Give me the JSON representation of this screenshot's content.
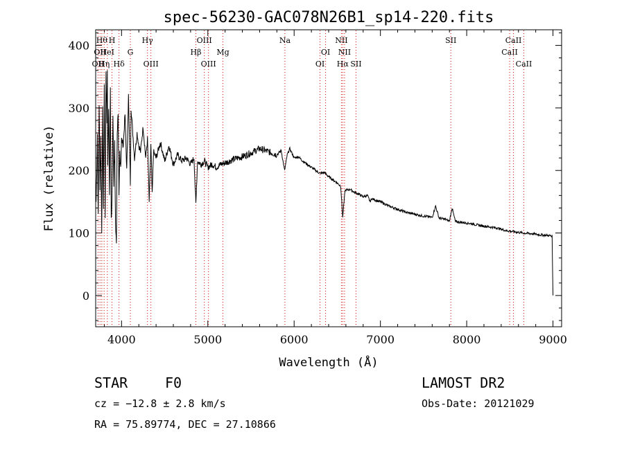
{
  "chart_data": {
    "type": "line",
    "title": "spec-56230-GAC078N26B1_sp14-220.fits",
    "xlabel": "Wavelength (Å)",
    "ylabel": "Flux (relative)",
    "xlim": [
      3700,
      9100
    ],
    "ylim": [
      -50,
      425
    ],
    "xticks": [
      4000,
      5000,
      6000,
      7000,
      8000,
      9000
    ],
    "yticks": [
      0,
      100,
      200,
      300,
      400
    ],
    "grid": false,
    "line_color": "#000000",
    "marker_color": "#cc0000",
    "series": [
      {
        "x": [
          3705,
          3720,
          3730,
          3740,
          3750,
          3760,
          3770,
          3780,
          3790,
          3800,
          3810,
          3820,
          3830,
          3835,
          3840,
          3850,
          3860,
          3870,
          3880,
          3889,
          3900,
          3910,
          3920,
          3930,
          3940,
          3950,
          3960,
          3970,
          3980,
          3990,
          4000,
          4020,
          4040,
          4060,
          4080,
          4102,
          4110,
          4130,
          4150,
          4180,
          4200,
          4220,
          4250,
          4280,
          4300,
          4320,
          4340,
          4355,
          4370,
          4400,
          4450,
          4500,
          4550,
          4600,
          4650,
          4700,
          4750,
          4800,
          4840,
          4861,
          4880,
          4920,
          4960,
          5000,
          5050,
          5100,
          5150,
          5200,
          5250,
          5300,
          5400,
          5500,
          5600,
          5700,
          5800,
          5850,
          5890,
          5920,
          5950,
          6000,
          6050,
          6100,
          6150,
          6200,
          6250,
          6300,
          6350,
          6400,
          6450,
          6500,
          6540,
          6563,
          6590,
          6650,
          6700,
          6750,
          6800,
          6850,
          6880,
          6900,
          6950,
          7000,
          7100,
          7200,
          7300,
          7400,
          7500,
          7600,
          7640,
          7680,
          7750,
          7800,
          7830,
          7870,
          7950,
          8050,
          8150,
          8250,
          8350,
          8450,
          8550,
          8650,
          8750,
          8850,
          8950,
          8990,
          9000
        ],
        "y": [
          150,
          260,
          120,
          310,
          180,
          250,
          100,
          290,
          140,
          340,
          130,
          360,
          280,
          370,
          200,
          310,
          150,
          330,
          120,
          160,
          300,
          170,
          250,
          110,
          90,
          270,
          280,
          150,
          230,
          210,
          250,
          240,
          290,
          200,
          320,
          180,
          300,
          260,
          220,
          260,
          240,
          230,
          270,
          220,
          250,
          150,
          240,
          160,
          230,
          220,
          245,
          215,
          240,
          210,
          225,
          215,
          220,
          210,
          220,
          145,
          215,
          210,
          215,
          205,
          210,
          205,
          210,
          212,
          215,
          218,
          222,
          228,
          235,
          230,
          225,
          232,
          200,
          225,
          235,
          220,
          222,
          215,
          210,
          205,
          200,
          195,
          197,
          190,
          185,
          180,
          175,
          125,
          168,
          170,
          165,
          162,
          158,
          160,
          150,
          155,
          152,
          150,
          143,
          138,
          133,
          130,
          127,
          125,
          143,
          124,
          122,
          119,
          140,
          118,
          117,
          115,
          112,
          110,
          108,
          104,
          102,
          100,
          99,
          97,
          96,
          95,
          0
        ]
      }
    ],
    "line_markers": [
      {
        "x": 3727,
        "label": "OII",
        "row": 2
      },
      {
        "x": 3750,
        "label": "OII",
        "row": 1
      },
      {
        "x": 3771,
        "label": "Hθ",
        "row": 0
      },
      {
        "x": 3798,
        "label": "Hη",
        "row": 2
      },
      {
        "x": 3835,
        "label": "HeI",
        "row": 1
      },
      {
        "x": 3889,
        "label": "H",
        "row": 0
      },
      {
        "x": 3970,
        "label": "Hδ",
        "row": 2
      },
      {
        "x": 4102,
        "label": "G",
        "row": 1
      },
      {
        "x": 4300,
        "label": "Hγ",
        "row": 0
      },
      {
        "x": 4340,
        "label": "OIII",
        "row": 2
      },
      {
        "x": 4861,
        "label": "Hβ",
        "row": 1
      },
      {
        "x": 4959,
        "label": "OIII",
        "row": 0
      },
      {
        "x": 5007,
        "label": "OIII",
        "row": 2
      },
      {
        "x": 5175,
        "label": "Mg",
        "row": 1
      },
      {
        "x": 5893,
        "label": "Na",
        "row": 0
      },
      {
        "x": 6300,
        "label": "OI",
        "row": 2
      },
      {
        "x": 6364,
        "label": "OI",
        "row": 1
      },
      {
        "x": 6548,
        "label": "NII",
        "row": 0
      },
      {
        "x": 6563,
        "label": "Hα",
        "row": 2
      },
      {
        "x": 6584,
        "label": "NII",
        "row": 1
      },
      {
        "x": 6717,
        "label": "SII",
        "row": 2
      },
      {
        "x": 7816,
        "label": "SII",
        "row": 0
      },
      {
        "x": 8498,
        "label": "CaII",
        "row": 1
      },
      {
        "x": 8542,
        "label": "CaII",
        "row": 0
      },
      {
        "x": 8662,
        "label": "CaII",
        "row": 2
      }
    ]
  },
  "info": {
    "object_class": "STAR",
    "subclass": "F0",
    "redshift": "cz = −12.8 ± 2.8 km/s",
    "coords": "RA =  75.89774, DEC =  27.10866",
    "survey": "LAMOST DR2",
    "obs_date": "Obs-Date: 20121029"
  }
}
